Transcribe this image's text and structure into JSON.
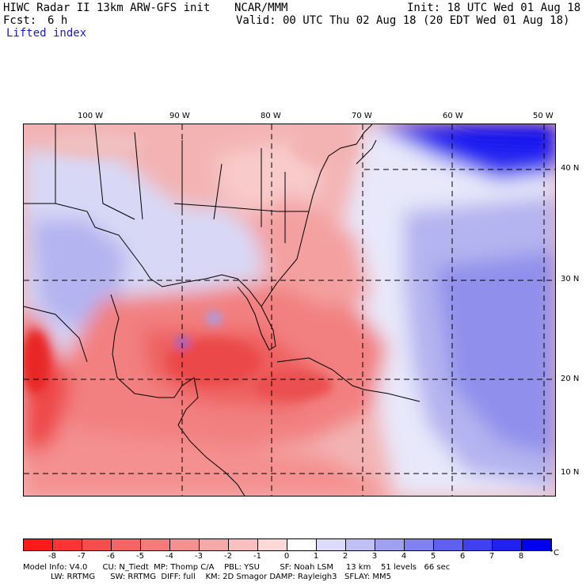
{
  "header": {
    "model": "HIWC Radar II 13km ARW-GFS init",
    "org": "NCAR/MMM",
    "init": "Init: 18 UTC Wed 01 Aug 18",
    "fcst_label": "Fcst:",
    "fcst_value": "6 h",
    "valid": "Valid: 00 UTC Thu 02 Aug 18 (20 EDT Wed 01 Aug 18)",
    "field": "Lifted index"
  },
  "lon_labels": [
    "100 W",
    "90 W",
    "80 W",
    "70 W",
    "60 W",
    "50 W"
  ],
  "lat_labels": [
    "40 N",
    "30 N",
    "20 N",
    "10 N"
  ],
  "colorbar": {
    "unit": "°C",
    "ticks": [
      "-8",
      "-7",
      "-6",
      "-5",
      "-4",
      "-3",
      "-2",
      "-1",
      "0",
      "1",
      "2",
      "3",
      "4",
      "5",
      "6",
      "7",
      "8"
    ],
    "colors": [
      "#ff1a1a",
      "#ff3333",
      "#f54c4c",
      "#f56464",
      "#f57a7a",
      "#f59090",
      "#f5a8a8",
      "#f8c0c0",
      "#fcd8d8",
      "#ffffff",
      "#dcdcfa",
      "#c0c0f5",
      "#a0a0f0",
      "#8080f0",
      "#6060f0",
      "#4040f0",
      "#2020f0",
      "#0000f0"
    ]
  },
  "footer": {
    "line1": "Model Info: V4.0      CU: N_Tiedt  MP: Thomp C/A    PBL: YSU        SF: Noah LSM     13 km    51 levels   66 sec",
    "line2": "           LW: RRTMG      SW: RRTMG  DIFF: full    KM: 2D Smagor DAMP: Rayleigh3   SFLAY: MM5"
  }
}
